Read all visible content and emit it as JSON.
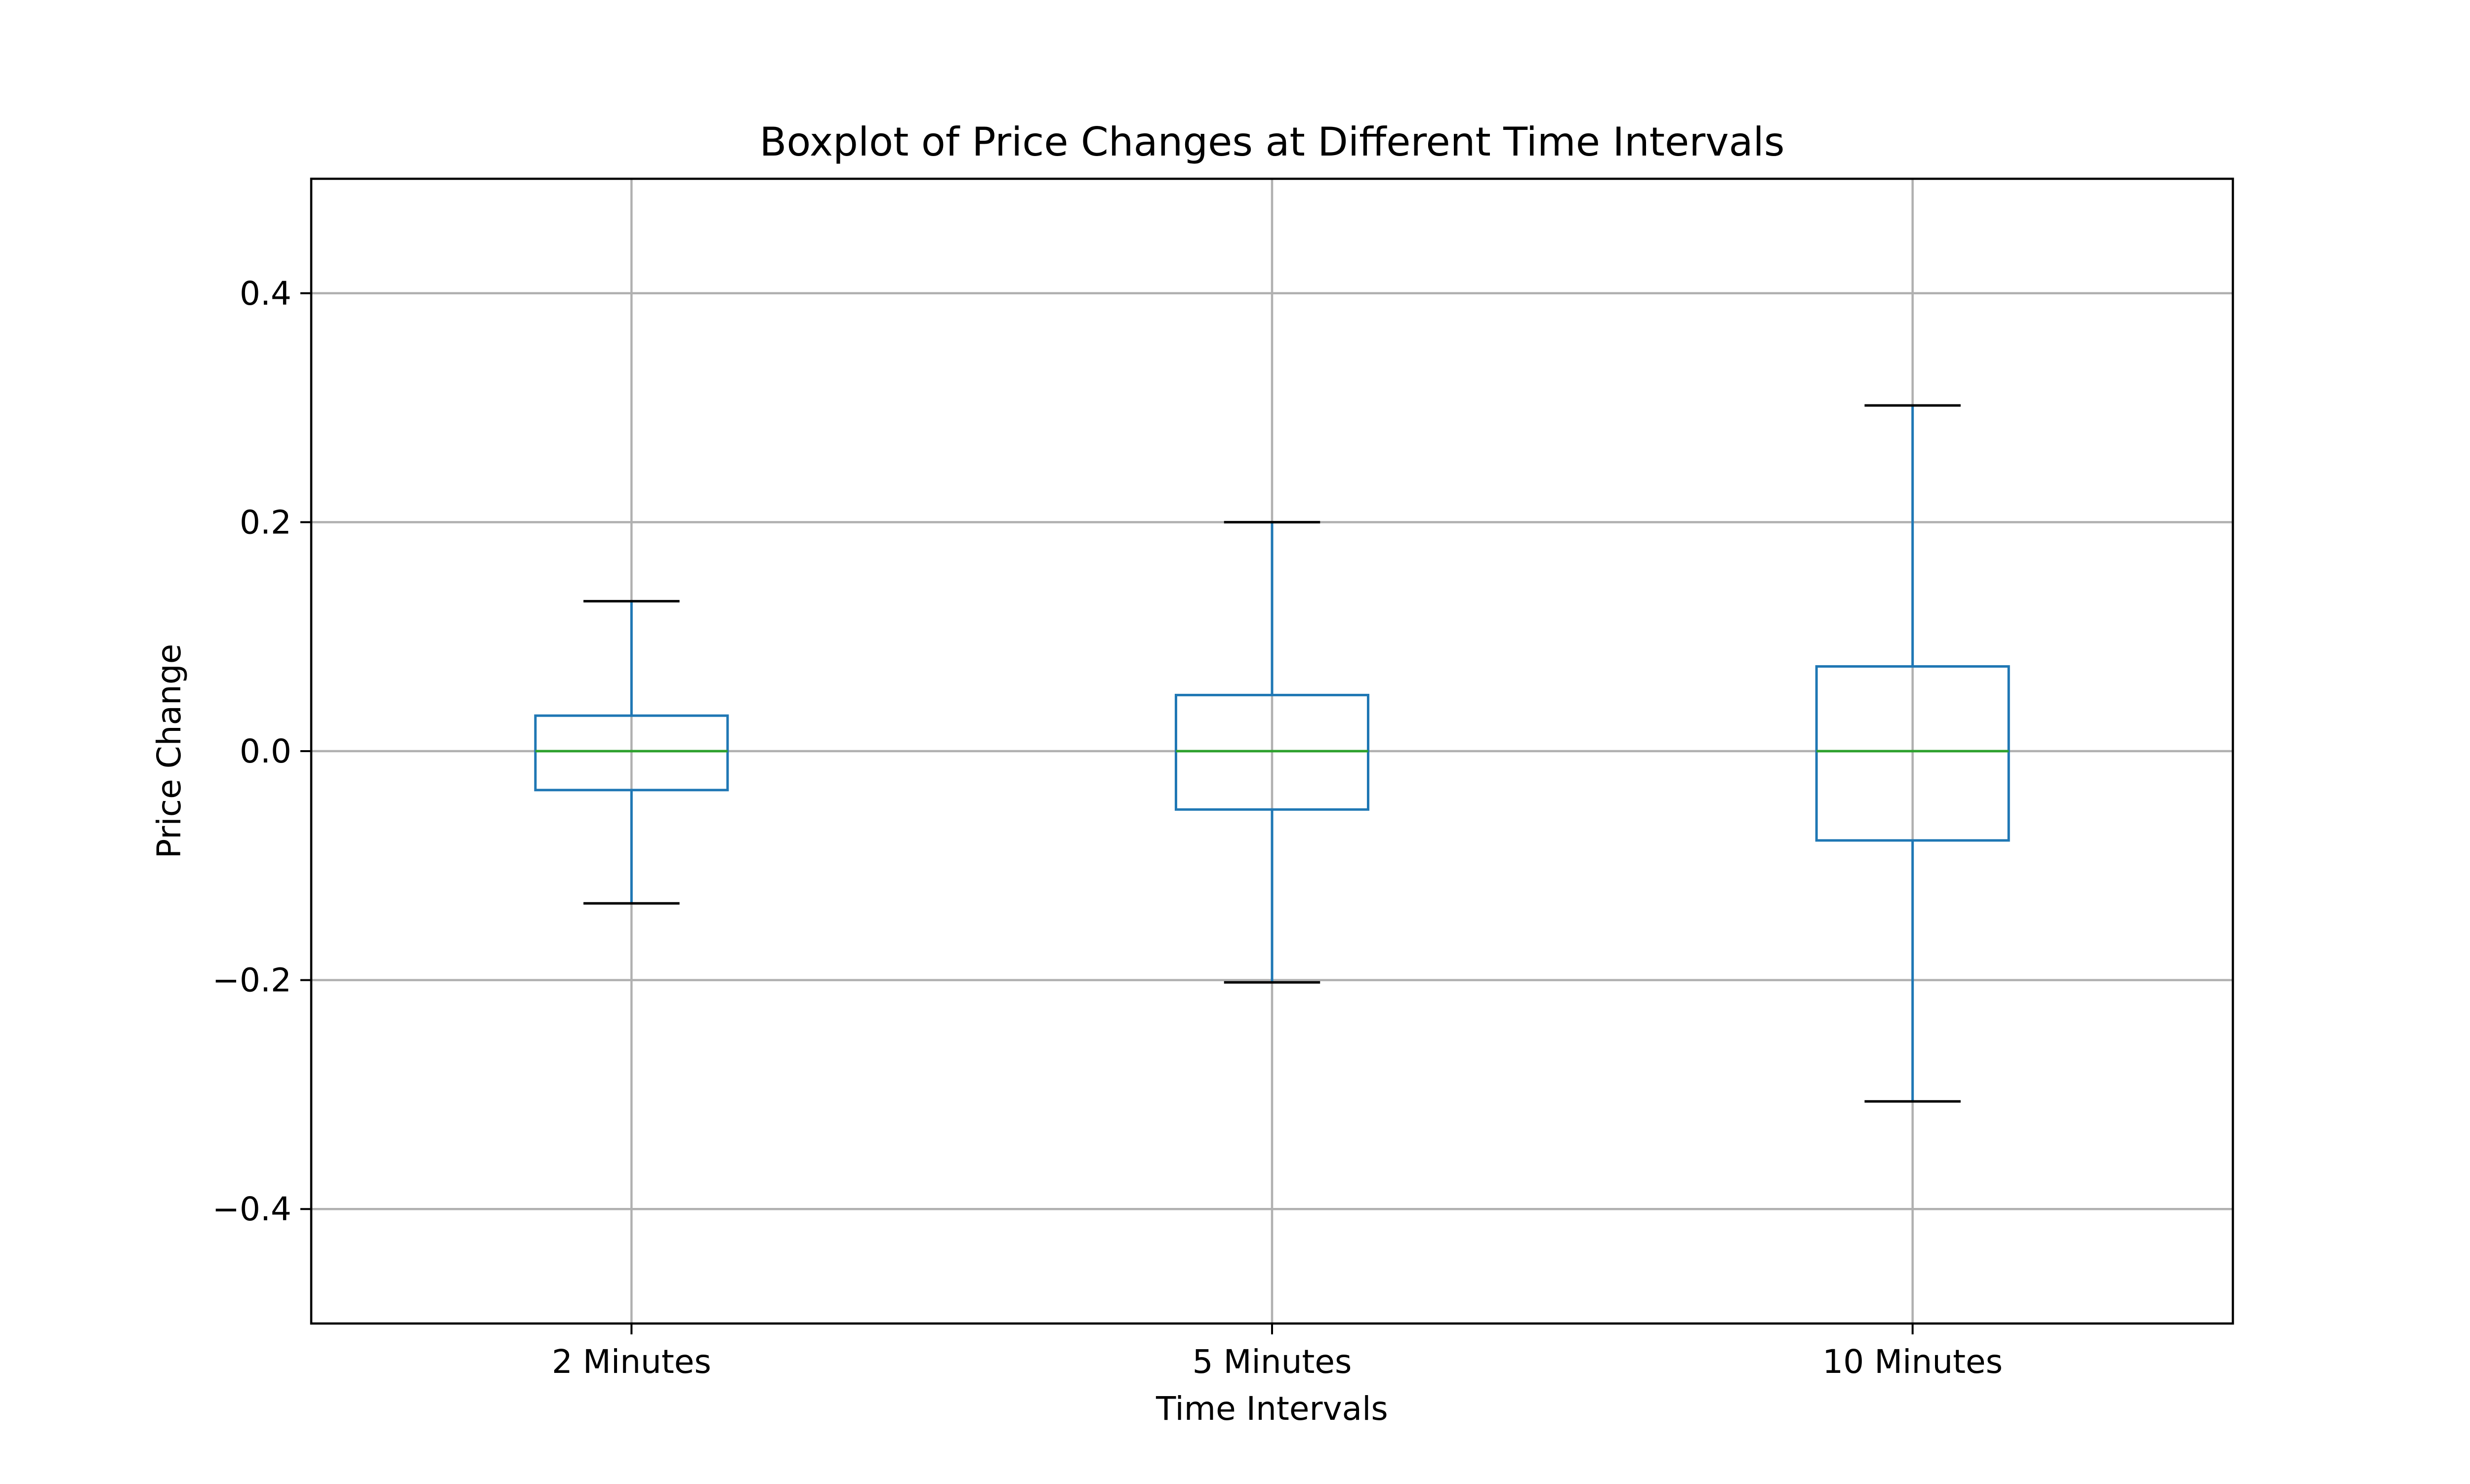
{
  "chart_data": {
    "type": "box",
    "title": "Boxplot of Price Changes at Different Time Intervals",
    "xlabel": "Time Intervals",
    "ylabel": "Price Change",
    "ylim": [
      -0.5,
      0.5
    ],
    "yticks": [
      -0.4,
      -0.2,
      0.0,
      0.2,
      0.4
    ],
    "ytick_labels": [
      "−0.4",
      "−0.2",
      "0.0",
      "0.2",
      "0.4"
    ],
    "grid": true,
    "categories": [
      "2 Minutes",
      "5 Minutes",
      "10 Minutes"
    ],
    "boxes": [
      {
        "whisker_low": -0.133,
        "q1": -0.034,
        "median": 0.0,
        "q3": 0.031,
        "whisker_high": 0.131
      },
      {
        "whisker_low": -0.202,
        "q1": -0.051,
        "median": 0.0,
        "q3": 0.049,
        "whisker_high": 0.2
      },
      {
        "whisker_low": -0.306,
        "q1": -0.078,
        "median": 0.0,
        "q3": 0.074,
        "whisker_high": 0.302
      }
    ],
    "colors": {
      "box": "#1f77b4",
      "median": "#2ca02c",
      "cap": "#000000",
      "grid": "#b0b0b0"
    }
  }
}
